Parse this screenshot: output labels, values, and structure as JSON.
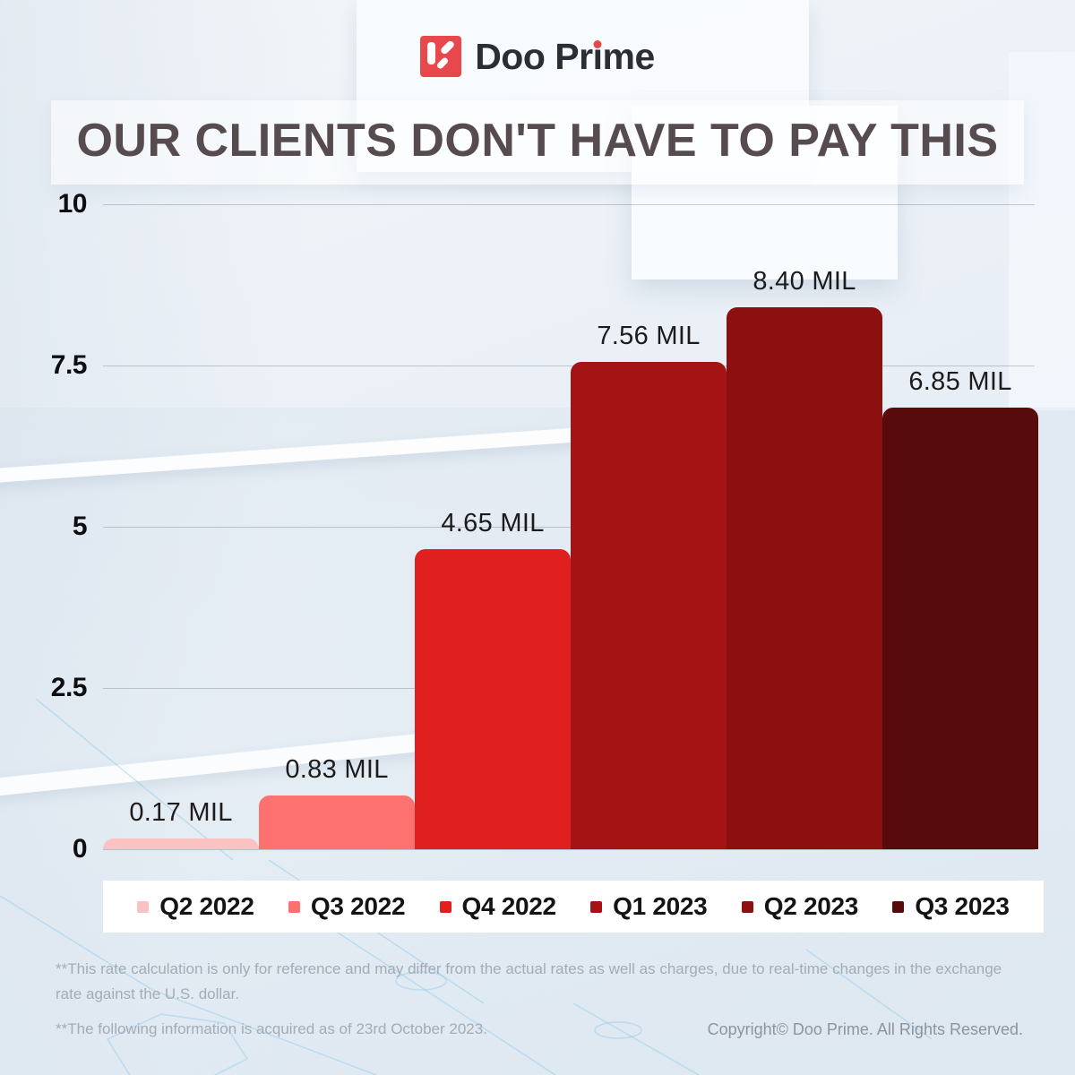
{
  "brand": {
    "logo_text_pre": "Doo Pr",
    "logo_text_i": "i",
    "logo_text_post": "me",
    "logo_color": "#e8484b",
    "text_color": "#2b2e34"
  },
  "title": "OUR CLIENTS DON'T HAVE TO PAY THIS",
  "chart_data": {
    "type": "bar",
    "title": "OUR CLIENTS DON'T HAVE TO PAY THIS",
    "categories": [
      "Q2 2022",
      "Q3 2022",
      "Q4 2022",
      "Q1 2023",
      "Q2 2023",
      "Q3 2023"
    ],
    "values": [
      0.17,
      0.83,
      4.65,
      7.56,
      8.4,
      6.85
    ],
    "value_labels": [
      "0.17 MIL",
      "0.83 MIL",
      "4.65 MIL",
      "7.56 MIL",
      "8.40 MIL",
      "6.85 MIL"
    ],
    "bar_colors": [
      "#fbc2c3",
      "#fd7170",
      "#e01f1f",
      "#a41414",
      "#8c1010",
      "#570c0b"
    ],
    "unit": "MIL",
    "xlabel": "",
    "ylabel": "",
    "ylim": [
      0,
      10
    ],
    "yticks": [
      {
        "label": "10",
        "value": 10
      },
      {
        "label": "7.5",
        "value": 7.5
      },
      {
        "label": "5",
        "value": 5
      },
      {
        "label": "2.5",
        "value": 2.5
      },
      {
        "label": "0",
        "value": 0
      }
    ],
    "grid": true,
    "legend_position": "bottom"
  },
  "footnotes": [
    "**This rate calculation is only for reference and may differ from the actual rates as well as charges, due to real-time changes in the exchange rate against the U.S. dollar.",
    "**The following information is acquired as of 23rd October 2023."
  ],
  "copyright": "Copyright© Doo Prime. All Rights Reserved."
}
